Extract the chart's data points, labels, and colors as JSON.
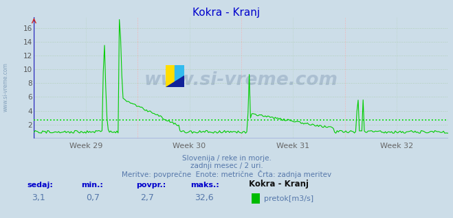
{
  "title": "Kokra - Kranj",
  "title_color": "#0000cc",
  "bg_color": "#ccdde8",
  "plot_bg_color": "#ccdde8",
  "line_color": "#00cc00",
  "avg_line_color": "#00dd00",
  "avg_value": 2.7,
  "ylim": [
    0,
    17.5
  ],
  "yticks": [
    2,
    4,
    6,
    8,
    10,
    12,
    14,
    16
  ],
  "ytick_labels": [
    "2",
    "4",
    "6",
    "8",
    "10",
    "12",
    "14",
    "16"
  ],
  "grid_color_red": "#ffaaaa",
  "grid_color_green": "#aaccaa",
  "week_labels": [
    "Week 29",
    "Week 30",
    "Week 31",
    "Week 32"
  ],
  "week_label_color": "#666666",
  "axis_line_color": "#2222bb",
  "subtitle1": "Slovenija / reke in morje.",
  "subtitle2": "zadnji mesec / 2 uri.",
  "subtitle3": "Meritve: povprečne  Enote: metrične  Črta: zadnja meritev",
  "subtitle_color": "#5577aa",
  "footer_label_color": "#0000cc",
  "footer_value_color": "#5577aa",
  "sedaj_lbl": "sedaj:",
  "min_lbl": "min.:",
  "povpr_lbl": "povpr.:",
  "maks_lbl": "maks.:",
  "sedaj": "3,1",
  "min_val": "0,7",
  "povpr": "2,7",
  "maks": "32,6",
  "station_name": "Kokra - Kranj",
  "legend_label": "pretok[m3/s]",
  "legend_color": "#00bb00",
  "watermark_text": "www.si-vreme.com",
  "watermark_color": "#1a3a6a",
  "watermark_alpha": 0.18,
  "left_watermark": "www.si-vreme.com",
  "left_watermark_color": "#6688aa"
}
